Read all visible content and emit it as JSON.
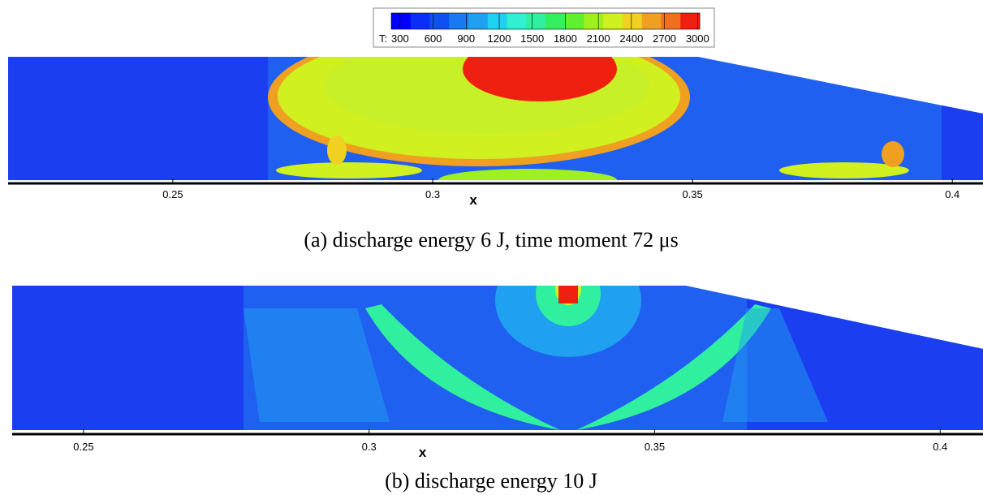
{
  "colorbar": {
    "label": "T:",
    "ticks": [
      300,
      600,
      900,
      1200,
      1500,
      1800,
      2100,
      2400,
      2700,
      3000
    ],
    "clim": [
      220,
      3020
    ],
    "colors": [
      "#0000ff",
      "#0a2ef6",
      "#1050f0",
      "#1a78f0",
      "#20a0f0",
      "#20d0f0",
      "#30f0d0",
      "#30f0a0",
      "#30f060",
      "#60f030",
      "#a0f020",
      "#d0f020",
      "#f0d020",
      "#f0a020",
      "#f07020",
      "#f02010"
    ]
  },
  "panels": [
    {
      "xlim": [
        0.2183,
        0.4059
      ],
      "xticks": [
        0.25,
        0.3,
        0.35,
        0.4
      ],
      "xlabel": "x",
      "caption": "(a) discharge energy 6 J, time moment 72 μs"
    },
    {
      "xlim": [
        0.2375,
        0.4075
      ],
      "xticks": [
        0.25,
        0.3,
        0.35,
        0.4
      ],
      "xlabel": "x",
      "caption": "(b) discharge energy 10 J"
    }
  ]
}
